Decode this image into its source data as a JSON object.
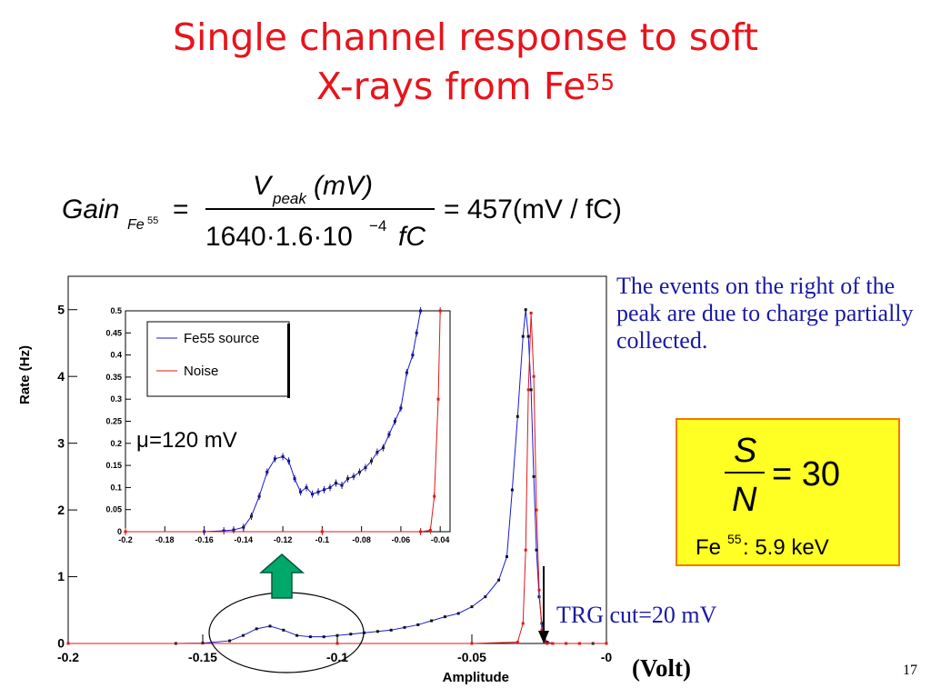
{
  "slide": {
    "title_line1": "Single channel response to soft",
    "title_line2": "X-rays from Fe",
    "title_sup": "55",
    "note": "The events on the right of the peak are due to charge partially collected.",
    "trg_label": "TRG cut=20 mV",
    "volt_label": "(Volt)",
    "slide_number": "17",
    "mu_label": "=120 mV",
    "mu_symbol": "μ"
  },
  "formula": {
    "gain": "Gain",
    "gain_sub": "Fe",
    "gain_sub_sup": "55",
    "eq": "=",
    "numerator_v": "V",
    "numerator_sub": "peak",
    "numerator_rest": "(mV)",
    "denominator": "1640·1.6·10",
    "denominator_exp": "−4",
    "denominator_unit": "fC",
    "result": "= 457(mV / fC)"
  },
  "sn_box": {
    "numerator": "S",
    "denominator": "N",
    "value": "= 30",
    "source": "Fe",
    "source_sup": "55",
    "energy": " : 5.9 keV"
  },
  "colors": {
    "title": "#e8141c",
    "fe55": "#1a1ad6",
    "noise": "#e01818",
    "note": "#1a1aa6"
  },
  "chart_data": [
    {
      "type": "line",
      "xlabel": "Amplitude",
      "ylabel": "Rate (Hz)",
      "xlim": [
        -0.2,
        0
      ],
      "ylim": [
        0,
        5.5
      ],
      "xticks": [
        "-0.2",
        "-0.15",
        "-0.1",
        "-0.05",
        "-0"
      ],
      "yticks": [
        "0",
        "1",
        "2",
        "3",
        "4",
        "5"
      ],
      "series": [
        {
          "name": "Fe55 source",
          "color": "#1a1ad6",
          "x": [
            -0.2,
            -0.16,
            -0.15,
            -0.14,
            -0.135,
            -0.13,
            -0.125,
            -0.12,
            -0.115,
            -0.11,
            -0.105,
            -0.1,
            -0.095,
            -0.09,
            -0.085,
            -0.08,
            -0.075,
            -0.07,
            -0.065,
            -0.06,
            -0.055,
            -0.05,
            -0.045,
            -0.04,
            -0.037,
            -0.035,
            -0.033,
            -0.031,
            -0.03,
            -0.029,
            -0.028,
            -0.027,
            -0.026,
            -0.025,
            -0.024,
            -0.023,
            -0.022,
            -0.02,
            -0.015,
            -0.01,
            -0.005,
            0
          ],
          "y": [
            0,
            0,
            0.005,
            0.04,
            0.12,
            0.22,
            0.26,
            0.2,
            0.12,
            0.1,
            0.1,
            0.12,
            0.14,
            0.16,
            0.18,
            0.2,
            0.24,
            0.28,
            0.34,
            0.4,
            0.45,
            0.55,
            0.7,
            0.95,
            1.3,
            2.3,
            3.4,
            4.6,
            5.0,
            4.6,
            3.8,
            2.5,
            1.4,
            0.7,
            0.3,
            0.08,
            0.02,
            0,
            0,
            0,
            0,
            0
          ]
        },
        {
          "name": "Noise",
          "color": "#e01818",
          "x": [
            -0.2,
            -0.1,
            -0.05,
            -0.033,
            -0.031,
            -0.03,
            -0.029,
            -0.028,
            -0.027,
            -0.026,
            -0.025,
            -0.024,
            -0.023,
            -0.022,
            -0.02,
            -0.015,
            -0.01,
            0
          ],
          "y": [
            0,
            0,
            0,
            0.02,
            0.3,
            1.4,
            3.8,
            4.95,
            4.0,
            2.0,
            0.8,
            0.2,
            0.03,
            0,
            0,
            0,
            0,
            0
          ]
        }
      ],
      "annotations": [
        "TRG cut=20 mV"
      ]
    },
    {
      "type": "line",
      "xlim": [
        -0.2,
        -0.035
      ],
      "ylim": [
        0,
        0.5
      ],
      "xticks": [
        "-0.2",
        "-0.18",
        "-0.16",
        "-0.14",
        "-0.12",
        "-0.1",
        "-0.08",
        "-0.06",
        "-0.04"
      ],
      "yticks": [
        "0",
        "0.05",
        "0.1",
        "0.15",
        "0.2",
        "0.25",
        "0.3",
        "0.35",
        "0.4",
        "0.45",
        "0.5"
      ],
      "legend": "top-left",
      "series": [
        {
          "name": "Fe55 source",
          "color": "#1a1ad6",
          "x": [
            -0.2,
            -0.16,
            -0.15,
            -0.145,
            -0.14,
            -0.136,
            -0.132,
            -0.128,
            -0.124,
            -0.12,
            -0.117,
            -0.114,
            -0.111,
            -0.108,
            -0.105,
            -0.102,
            -0.099,
            -0.096,
            -0.093,
            -0.09,
            -0.087,
            -0.084,
            -0.081,
            -0.078,
            -0.075,
            -0.072,
            -0.069,
            -0.066,
            -0.063,
            -0.06,
            -0.057,
            -0.054,
            -0.052,
            -0.05
          ],
          "y": [
            0,
            0,
            0.002,
            0.004,
            0.01,
            0.035,
            0.08,
            0.135,
            0.165,
            0.17,
            0.16,
            0.12,
            0.09,
            0.1,
            0.085,
            0.09,
            0.095,
            0.1,
            0.11,
            0.105,
            0.12,
            0.125,
            0.135,
            0.145,
            0.16,
            0.18,
            0.19,
            0.22,
            0.25,
            0.28,
            0.36,
            0.4,
            0.45,
            0.5
          ]
        },
        {
          "name": "Noise",
          "color": "#e01818",
          "x": [
            -0.2,
            -0.1,
            -0.05,
            -0.045,
            -0.043,
            -0.041,
            -0.04
          ],
          "y": [
            0,
            0,
            0,
            0.003,
            0.08,
            0.3,
            0.5
          ]
        }
      ],
      "annotations": [
        "μ=120 mV"
      ]
    }
  ]
}
